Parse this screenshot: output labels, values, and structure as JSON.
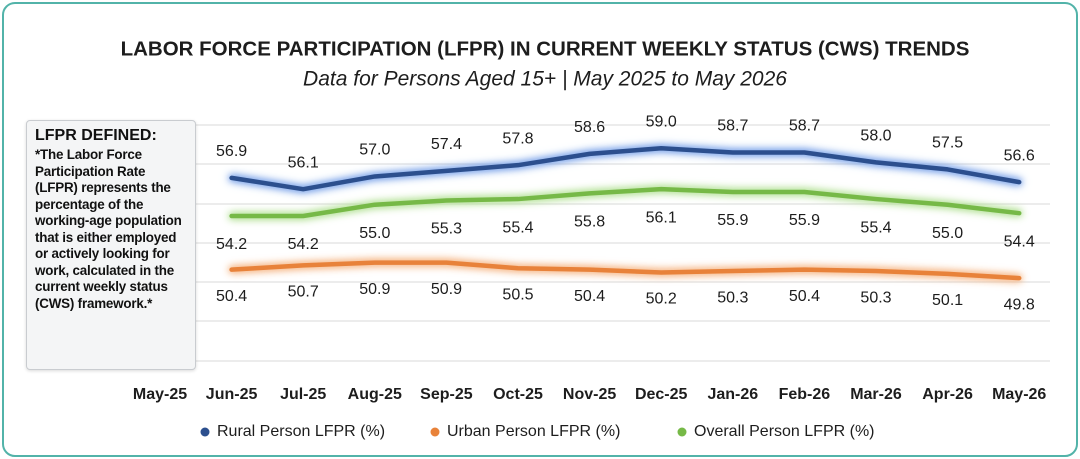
{
  "chart_data": {
    "type": "line",
    "title": "LABOR FORCE PARTICIPATION (LFPR) IN CURRENT WEEKLY STATUS (CWS) TRENDS",
    "subtitle": "Data for Persons Aged 15+ | May 2025 to May 2026",
    "note": {
      "heading": "LFPR DEFINED:",
      "text": "*The Labor Force Participation Rate (LFPR) represents the percentage of the working-age population that is either employed or actively looking for work, calculated in the current weekly status (CWS) framework.*"
    },
    "categories": [
      "May-25",
      "Jun-25",
      "Jul-25",
      "Aug-25",
      "Sep-25",
      "Oct-25",
      "Nov-25",
      "Dec-25",
      "Jan-26",
      "Feb-26",
      "Mar-26",
      "Apr-26",
      "May-26"
    ],
    "series": [
      {
        "name": "Rural Person LFPR (%)",
        "color": "#2c4f8e",
        "glow": "#7fa6ea",
        "values": [
          null,
          56.9,
          56.1,
          57.0,
          57.4,
          57.8,
          58.6,
          59.0,
          58.7,
          58.7,
          58.0,
          57.5,
          56.6
        ],
        "value_labels": [
          null,
          "56.9",
          "56.1",
          "57.0",
          "57.4",
          "57.8",
          "58.6",
          "59.0",
          "58.7",
          "58.7",
          "58.0",
          "57.5",
          "56.6"
        ]
      },
      {
        "name": "Urban Person LFPR (%)",
        "color": "#e8823a",
        "glow": "#f6b98a",
        "values": [
          null,
          50.4,
          50.7,
          50.9,
          50.9,
          50.5,
          50.4,
          50.2,
          50.3,
          50.4,
          50.3,
          50.1,
          49.8
        ],
        "value_labels": [
          null,
          "50.4",
          "50.7",
          "50.9",
          "50.9",
          "50.5",
          "50.4",
          "50.2",
          "50.3",
          "50.4",
          "50.3",
          "50.1",
          "49.8"
        ]
      },
      {
        "name": "Overall Person LFPR (%)",
        "color": "#76b947",
        "glow": "#b6e29a",
        "values": [
          null,
          54.2,
          54.2,
          55.0,
          55.3,
          55.4,
          55.8,
          56.1,
          55.9,
          55.9,
          55.4,
          55.0,
          54.4
        ],
        "value_labels": [
          null,
          "54.2",
          "54.2",
          "55.0",
          "55.3",
          "55.4",
          "55.8",
          "56.1",
          "55.9",
          "55.9",
          "55.4",
          "55.0",
          "54.4"
        ]
      }
    ],
    "ylim": [
      44,
      61
    ],
    "grid": true,
    "legend": "bottom"
  }
}
